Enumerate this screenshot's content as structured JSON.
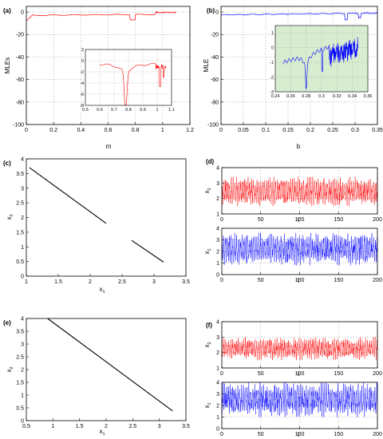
{
  "chart_data": [
    {
      "id": "a",
      "panel_label": "(a)",
      "type": "line",
      "xlabel": "m",
      "ylabel": "MLEs",
      "xlim": [
        0,
        1.2
      ],
      "ylim": [
        -100,
        5
      ],
      "xticks": [
        "0",
        "0.2",
        "0.4",
        "0.6",
        "0.8",
        "1",
        "1.2"
      ],
      "yticks": [
        "0",
        "-20",
        "-40",
        "-60",
        "-80",
        "-100"
      ],
      "grid": true,
      "series": [
        {
          "color": "#ff0000",
          "description": "MLE curve, near zero with dips at m≈0.78 and m≈1.02"
        }
      ],
      "inset": {
        "xlim": [
          0.5,
          1.1
        ],
        "ylim": [
          -8,
          2
        ],
        "xticks": [
          "0.5",
          "0.6",
          "0.7",
          "0.8",
          "0.9",
          "1",
          "1.1"
        ],
        "yticks": [
          "2",
          "0",
          "-2",
          "-4",
          "-6",
          "-8"
        ],
        "background": "#ffffff"
      }
    },
    {
      "id": "b",
      "panel_label": "(b)",
      "type": "line",
      "xlabel": "b",
      "ylabel": "MLE",
      "xlim": [
        0,
        0.35
      ],
      "ylim": [
        -100,
        5
      ],
      "xticks": [
        "0",
        "0.05",
        "0.1",
        "0.15",
        "0.2",
        "0.25",
        "0.3",
        "0.35"
      ],
      "yticks": [
        "0",
        "-20",
        "-40",
        "-60",
        "-80",
        "-100"
      ],
      "grid": true,
      "series": [
        {
          "color": "#0000ff",
          "description": "MLE curve, near zero with dips at b≈0.28 and b≈0.31"
        }
      ],
      "inset": {
        "xlim": [
          0.24,
          0.36
        ],
        "ylim": [
          -3,
          1.5
        ],
        "xticks": [
          "0.24",
          "0.26",
          "0.28",
          "0.3",
          "0.32",
          "0.34",
          "0.36"
        ],
        "yticks": [
          "1",
          "0",
          "-1",
          "-2",
          "-3"
        ],
        "background": "#d8ecd0"
      }
    },
    {
      "id": "c",
      "panel_label": "(c)",
      "type": "line",
      "xlabel": "x",
      "xlabel_sub": "1",
      "ylabel": "x",
      "ylabel_sub": "2",
      "xlim": [
        1,
        3.5
      ],
      "ylim": [
        0,
        4
      ],
      "xticks": [
        "1",
        "1.5",
        "2",
        "2.5",
        "3",
        "3.5"
      ],
      "yticks": [
        "0",
        "0.5",
        "1",
        "1.5",
        "2",
        "2.5",
        "3",
        "3.5",
        "4"
      ],
      "grid": false,
      "segments": [
        [
          [
            1.05,
            3.7
          ],
          [
            2.25,
            1.8
          ]
        ],
        [
          [
            2.65,
            1.22
          ],
          [
            3.15,
            0.48
          ]
        ]
      ]
    },
    {
      "id": "d_top",
      "panel_label": "(d)",
      "type": "line",
      "xlabel": "t",
      "ylabel": "x",
      "ylabel_sub": "2",
      "xlim": [
        0,
        200
      ],
      "ylim": [
        1,
        4
      ],
      "xticks": [
        "0",
        "50",
        "100",
        "150",
        "200"
      ],
      "yticks": [
        "1",
        "2",
        "3",
        "4"
      ],
      "grid": true,
      "series": [
        {
          "color": "#ff0000",
          "description": "oscillating x2 time series between about 1.5 and 3.4"
        }
      ]
    },
    {
      "id": "d_bottom",
      "panel_label": "",
      "type": "line",
      "xlabel": "t",
      "ylabel": "x",
      "ylabel_sub": "1",
      "xlim": [
        0,
        200
      ],
      "ylim": [
        0,
        4
      ],
      "xticks": [
        "0",
        "50",
        "100",
        "150",
        "200"
      ],
      "yticks": [
        "0",
        "1",
        "2",
        "3",
        "4"
      ],
      "grid": true,
      "series": [
        {
          "color": "#0000ff",
          "description": "oscillating x1 time series between about 0.8 and 3.6"
        }
      ]
    },
    {
      "id": "e",
      "panel_label": "(e)",
      "type": "line",
      "xlabel": "x",
      "xlabel_sub": "1",
      "ylabel": "x",
      "ylabel_sub": "2",
      "xlim": [
        0.5,
        3.5
      ],
      "ylim": [
        0,
        4
      ],
      "xticks": [
        "0.5",
        "1",
        "1.5",
        "2",
        "2.5",
        "3",
        "3.5"
      ],
      "yticks": [
        "0",
        "0.5",
        "1",
        "1.5",
        "2",
        "2.5",
        "3",
        "3.5",
        "4"
      ],
      "grid": false,
      "segments": [
        [
          [
            0.9,
            4.0
          ],
          [
            3.25,
            0.38
          ]
        ]
      ]
    },
    {
      "id": "f_top",
      "panel_label": "(f)",
      "type": "line",
      "xlabel": "t",
      "ylabel": "x",
      "ylabel_sub": "2",
      "xlim": [
        0,
        200
      ],
      "ylim": [
        1,
        4
      ],
      "xticks": [
        "0",
        "50",
        "100",
        "150",
        "200"
      ],
      "yticks": [
        "1",
        "2",
        "3",
        "4"
      ],
      "grid": true,
      "series": [
        {
          "color": "#ff0000",
          "description": "oscillating x2 time series between about 1.5 and 3.0"
        }
      ]
    },
    {
      "id": "f_bottom",
      "panel_label": "",
      "type": "line",
      "xlabel": "t",
      "ylabel": "x",
      "ylabel_sub": "1",
      "xlim": [
        0,
        200
      ],
      "ylim": [
        0,
        4
      ],
      "xticks": [
        "0",
        "50",
        "100",
        "150",
        "200"
      ],
      "yticks": [
        "0",
        "1",
        "2",
        "3",
        "4"
      ],
      "grid": true,
      "series": [
        {
          "color": "#0000ff",
          "description": "oscillating x1 time series between about 1.0 and 4.0"
        }
      ]
    }
  ]
}
